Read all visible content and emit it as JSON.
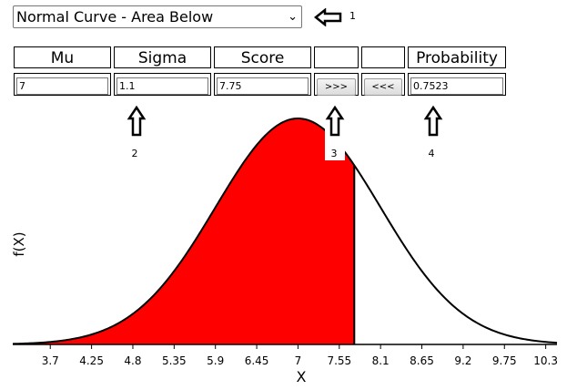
{
  "dropdown": {
    "selected": "Normal Curve - Area Below"
  },
  "annotations": [
    "1",
    "2",
    "3",
    "4"
  ],
  "params": {
    "headers": {
      "mu": "Mu",
      "sigma": "Sigma",
      "score": "Score",
      "probability": "Probability"
    },
    "values": {
      "mu": "7",
      "sigma": "1.1",
      "score": "7.75",
      "probability": "0.7523"
    },
    "forward_button": ">>>",
    "back_button": "<<<"
  },
  "colors": {
    "fill": "#ff0000",
    "curve": "#000000"
  },
  "chart_data": {
    "type": "area",
    "xlabel": "X",
    "ylabel": "f(X)",
    "distribution": "normal",
    "mu": 7,
    "sigma": 1.1,
    "shaded_below": 7.75,
    "x_ticks": [
      "3.7",
      "4.25",
      "4.8",
      "5.35",
      "5.9",
      "6.45",
      "7",
      "7.55",
      "8.1",
      "8.65",
      "9.2",
      "9.75",
      "10.3"
    ],
    "xlim": [
      3.2,
      10.45
    ]
  }
}
